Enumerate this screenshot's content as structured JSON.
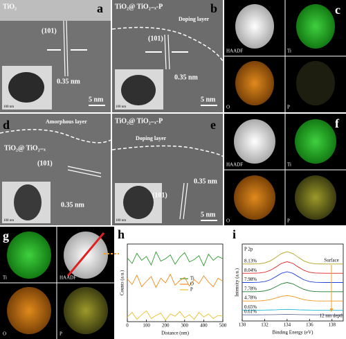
{
  "panels": {
    "a": {
      "letter": "a",
      "title": "TiO₂",
      "plane": "(101)",
      "spacing": "0.35 nm",
      "scale": "5 nm",
      "inset_scale": "100 nm"
    },
    "b": {
      "letter": "b",
      "title": "TiO₂@ TiO₂₋ₓ-P",
      "layer": "Doping layer",
      "plane": "(101)",
      "spacing": "0.35 nm",
      "scale": "5 nm",
      "inset_scale": "100 nm"
    },
    "c": {
      "letter": "c",
      "maps": [
        "HAADF",
        "Ti",
        "O",
        "P"
      ]
    },
    "d": {
      "letter": "d",
      "title": "TiO₂@ TiO₂₋ₓ",
      "layer": "Amorphous layer",
      "plane": "(101)",
      "spacing": "0.35 nm",
      "inset_scale": "100 nm"
    },
    "e": {
      "letter": "e",
      "title": "TiO₂@ TiO₂₋ₓ-P",
      "layer": "Doping layer",
      "plane": "(101)",
      "spacing": "0.35 nm",
      "scale": "5 nm",
      "inset_scale": "100 nm"
    },
    "f": {
      "letter": "f",
      "maps": [
        "HAADF",
        "Ti",
        "O",
        "P"
      ]
    },
    "g": {
      "letter": "g",
      "maps": [
        "Ti",
        "HAADF",
        "O",
        "P"
      ]
    },
    "h": {
      "letter": "h"
    },
    "i": {
      "letter": "i"
    }
  },
  "chart_data": [
    {
      "type": "line",
      "xlabel": "Distance (nm)",
      "ylabel": "Counts (a.u.)",
      "x": [
        0,
        25,
        50,
        75,
        100,
        125,
        150,
        175,
        200,
        225,
        250,
        275,
        300,
        325,
        350,
        375,
        400,
        425,
        450,
        475,
        500
      ],
      "xlim": [
        0,
        500
      ],
      "xticks": [
        0,
        100,
        200,
        300,
        400,
        500
      ],
      "ylim": [
        0,
        100
      ],
      "legend": "center right",
      "series": [
        {
          "name": "Ti",
          "color": "#2e9a2e",
          "values": [
            82,
            75,
            88,
            79,
            84,
            73,
            90,
            78,
            81,
            86,
            74,
            83,
            89,
            77,
            80,
            85,
            72,
            87,
            79,
            84,
            81
          ]
        },
        {
          "name": "O",
          "color": "#f08c1e",
          "values": [
            55,
            48,
            60,
            45,
            52,
            58,
            44,
            56,
            50,
            61,
            47,
            53,
            57,
            46,
            54,
            49,
            59,
            51,
            45,
            56,
            52
          ]
        },
        {
          "name": "P",
          "color": "#e8c030",
          "values": [
            6,
            12,
            3,
            9,
            14,
            4,
            8,
            11,
            2,
            10,
            7,
            13,
            5,
            9,
            3,
            12,
            6,
            10,
            4,
            8,
            7
          ]
        }
      ]
    },
    {
      "type": "line",
      "xlabel": "Binding Energy (eV)",
      "ylabel": "Intensity (a.u.)",
      "x": [
        130,
        130.5,
        131,
        131.5,
        132,
        132.5,
        133,
        133.5,
        134,
        134.5,
        135,
        135.5,
        136,
        136.5,
        137,
        137.5,
        138,
        138.5,
        139
      ],
      "xlim": [
        130,
        139
      ],
      "xticks": [
        130,
        132,
        134,
        136,
        138
      ],
      "ylim": [
        0,
        100
      ],
      "annotations": [
        "P 2p",
        "Surface",
        "12 nm depth"
      ],
      "series": [
        {
          "name": "8.13%",
          "color": "#b5a21e",
          "values": [
            74,
            74,
            74.1,
            74.3,
            75.4,
            78,
            82.6,
            87.7,
            90,
            87.7,
            82.6,
            78,
            75.4,
            74.3,
            74.1,
            74,
            74,
            74,
            74
          ]
        },
        {
          "name": "8.04%",
          "color": "#e02020",
          "values": [
            62,
            62,
            62.1,
            62.3,
            63.3,
            65.8,
            70.1,
            74.9,
            77,
            74.9,
            70.1,
            65.8,
            63.3,
            62.3,
            62.1,
            62,
            62,
            62,
            62
          ]
        },
        {
          "name": "7.98%",
          "color": "#1f3fd8",
          "values": [
            50,
            50,
            50.1,
            50.3,
            51.2,
            53.5,
            57.6,
            62,
            64,
            62,
            57.6,
            53.5,
            51.2,
            50.3,
            50.1,
            50,
            50,
            50,
            50
          ]
        },
        {
          "name": "7.78%",
          "color": "#1e7a2e",
          "values": [
            38,
            38,
            38,
            38.2,
            39,
            41,
            44.5,
            48.3,
            50,
            48.3,
            44.5,
            41,
            39,
            38.2,
            38,
            38,
            38,
            38,
            38
          ]
        },
        {
          "name": "4.78%",
          "color": "#f0961e",
          "values": [
            26,
            26,
            26,
            26.1,
            26.6,
            27.8,
            29.8,
            32,
            33,
            32,
            29.8,
            27.8,
            26.6,
            26.1,
            26,
            26,
            26,
            26,
            26
          ]
        },
        {
          "name": "0.65%",
          "color": "#20b8d8",
          "values": [
            14,
            14,
            14,
            14,
            14.1,
            14.3,
            14.5,
            14.9,
            15,
            14.9,
            14.5,
            14.3,
            14.1,
            14,
            14,
            14,
            14,
            14,
            14
          ]
        },
        {
          "name": "0.61%",
          "color": "#6a7aa0",
          "values": [
            8,
            8,
            8,
            8,
            8.1,
            8.2,
            8.3,
            8.5,
            8.6,
            8.5,
            8.3,
            8.2,
            8.1,
            8,
            8,
            8,
            8,
            8,
            8
          ]
        }
      ]
    }
  ]
}
